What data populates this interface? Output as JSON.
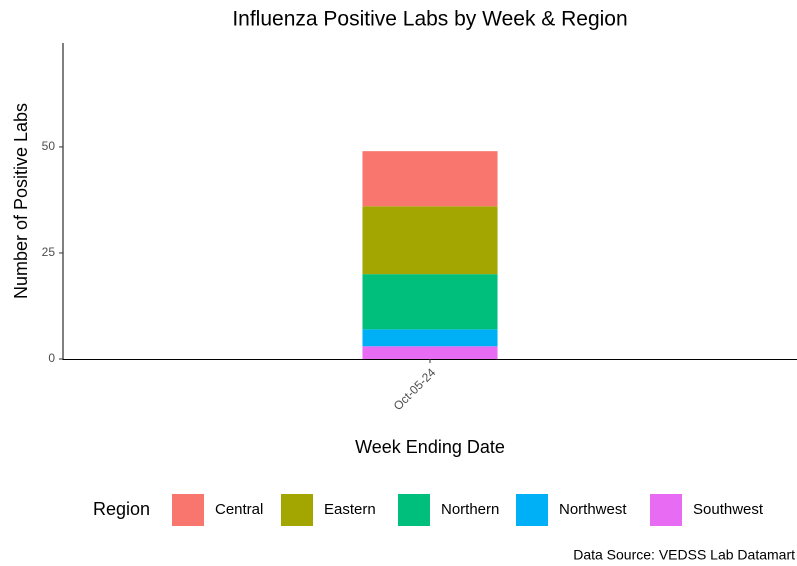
{
  "chart_data": {
    "type": "stacked_bar",
    "title": "Influenza Positive Labs by Week & Region",
    "x_label": "Week Ending Date",
    "y_label": "Number of Positive Labs",
    "categories": [
      "Oct-05-24"
    ],
    "series": [
      {
        "name": "Central",
        "color": "#F8766D",
        "values": [
          13
        ]
      },
      {
        "name": "Eastern",
        "color": "#A3A500",
        "values": [
          16
        ]
      },
      {
        "name": "Northern",
        "color": "#00BF7D",
        "values": [
          13
        ]
      },
      {
        "name": "Northwest",
        "color": "#00B0F6",
        "values": [
          4
        ]
      },
      {
        "name": "Southwest",
        "color": "#E76BF3",
        "values": [
          3
        ]
      }
    ],
    "ylim": [
      0,
      74.5
    ],
    "yticks": [
      0,
      25,
      50
    ],
    "grid": false,
    "legend_title": "Region",
    "legend_position": "bottom",
    "caption": "Data Source: VEDSS Lab Datamart"
  }
}
